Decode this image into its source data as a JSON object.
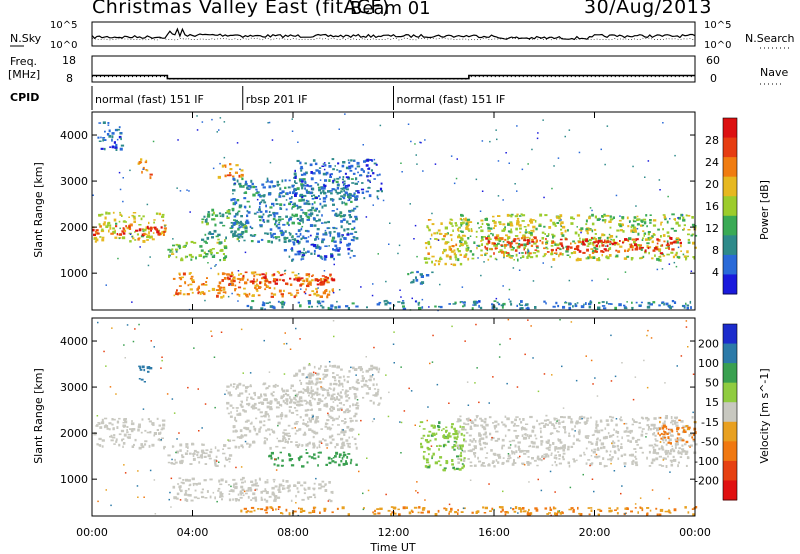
{
  "title": {
    "station": "Christmas Valley East (fitACF)",
    "beam": "Beam 01",
    "date": "30/Aug/2013"
  },
  "colors": {
    "power": [
      "#1a1adc",
      "#2a6ad8",
      "#2e8a8a",
      "#3aaa55",
      "#9ccc2c",
      "#e6b820",
      "#f07c10",
      "#e63c10",
      "#dc1010"
    ],
    "velocity": [
      "#1c2ccc",
      "#2c7aa8",
      "#3aa050",
      "#90cc40",
      "#c8c8c0",
      "#e8a020",
      "#f07810",
      "#e64010",
      "#e01010"
    ]
  },
  "chart_data": [
    {
      "type": "line",
      "name": "noise-panel",
      "left_label": "N.Sky",
      "left_ticks": [
        "10^5",
        "10^0"
      ],
      "right_label": "N.Search",
      "right_ticks": [
        "10^5",
        "10^0"
      ]
    },
    {
      "type": "line",
      "name": "freq-panel",
      "left_label": "Freq.",
      "left_unit": "[MHz]",
      "left_ticks": [
        "18",
        "8"
      ],
      "right_label": "Nave",
      "right_ticks": [
        "60",
        "0"
      ],
      "freq_mhz": [
        [
          0,
          10.5
        ],
        [
          3,
          10.5
        ],
        [
          3,
          9.3
        ],
        [
          15,
          9.3
        ],
        [
          15,
          10.5
        ],
        [
          24,
          10.5
        ]
      ],
      "nave": [
        [
          0,
          13
        ],
        [
          3,
          13
        ],
        [
          3,
          7
        ],
        [
          15,
          7
        ],
        [
          15,
          13
        ],
        [
          24,
          13
        ]
      ]
    },
    {
      "type": "table",
      "name": "cpid-panel",
      "label": "CPID",
      "segments": [
        {
          "start": 0,
          "end": 6,
          "text": "normal (fast) 151 IF"
        },
        {
          "start": 6,
          "end": 12,
          "text": "rbsp 201 IF"
        },
        {
          "start": 12,
          "end": 24,
          "text": "normal (fast) 151 IF"
        }
      ]
    },
    {
      "type": "heatmap",
      "name": "power-panel",
      "ylabel": "Slant Range [km]",
      "yticks": [
        1000,
        2000,
        3000,
        4000
      ],
      "ylim": [
        200,
        4500
      ],
      "colorbar_label": "Power [dB]",
      "colorbar_ticks": [
        4,
        8,
        12,
        16,
        20,
        24,
        28
      ],
      "colorbar_range": [
        0,
        32
      ],
      "regions": [
        {
          "t0": 0,
          "t1": 2.9,
          "r0": 1700,
          "r1": 2350,
          "v": 18
        },
        {
          "t0": 0,
          "t1": 2.9,
          "r0": 1850,
          "r1": 2050,
          "v": 27
        },
        {
          "t0": 0.2,
          "t1": 1.2,
          "r0": 3700,
          "r1": 4300,
          "v": 6
        },
        {
          "t0": 1.8,
          "t1": 2.3,
          "r0": 3100,
          "r1": 3500,
          "v": 22
        },
        {
          "t0": 3.0,
          "t1": 5.3,
          "r0": 1300,
          "r1": 1750,
          "v": 14
        },
        {
          "t0": 4.3,
          "t1": 6.1,
          "r0": 1700,
          "r1": 2400,
          "v": 12
        },
        {
          "t0": 3.2,
          "t1": 9.6,
          "r0": 500,
          "r1": 1050,
          "v": 22
        },
        {
          "t0": 5.2,
          "t1": 9.6,
          "r0": 750,
          "r1": 1000,
          "v": 28
        },
        {
          "t0": 5.5,
          "t1": 10.5,
          "r0": 1700,
          "r1": 3100,
          "v": 8
        },
        {
          "t0": 8.0,
          "t1": 11.5,
          "r0": 2600,
          "r1": 3500,
          "v": 6
        },
        {
          "t0": 7.5,
          "t1": 10.4,
          "r0": 1300,
          "r1": 1900,
          "v": 6
        },
        {
          "t0": 5.0,
          "t1": 6.1,
          "r0": 3100,
          "r1": 3400,
          "v": 22
        },
        {
          "t0": 13.2,
          "t1": 15.0,
          "r0": 1200,
          "r1": 2200,
          "v": 18
        },
        {
          "t0": 14.5,
          "t1": 24.0,
          "r0": 1300,
          "r1": 2300,
          "v": 16
        },
        {
          "t0": 15.5,
          "t1": 23.5,
          "r0": 1450,
          "r1": 1800,
          "v": 27
        },
        {
          "t0": 5.9,
          "t1": 24.0,
          "r0": 250,
          "r1": 420,
          "v": 8
        },
        {
          "t0": 12.5,
          "t1": 13.5,
          "r0": 800,
          "r1": 1050,
          "v": 8
        }
      ]
    },
    {
      "type": "heatmap",
      "name": "velocity-panel",
      "ylabel": "Slant Range [km]",
      "yticks": [
        1000,
        2000,
        3000,
        4000
      ],
      "ylim": [
        200,
        4500
      ],
      "colorbar_label": "Velocity [m s^-1]",
      "colorbar_ticks": [
        200,
        100,
        50,
        15,
        -15,
        -50,
        -100,
        -200
      ],
      "regions": [
        {
          "t0": 0,
          "t1": 2.9,
          "r0": 1700,
          "r1": 2350,
          "v": 0
        },
        {
          "t0": 1.8,
          "t1": 2.3,
          "r0": 3100,
          "r1": 3500,
          "v": 180
        },
        {
          "t0": 3.0,
          "t1": 5.5,
          "r0": 1300,
          "r1": 1800,
          "v": 0
        },
        {
          "t0": 3.2,
          "t1": 9.6,
          "r0": 550,
          "r1": 1050,
          "v": 0
        },
        {
          "t0": 5.3,
          "t1": 10.5,
          "r0": 1700,
          "r1": 3100,
          "v": 0
        },
        {
          "t0": 7.0,
          "t1": 10.5,
          "r0": 1300,
          "r1": 1600,
          "v": 70
        },
        {
          "t0": 8.0,
          "t1": 11.5,
          "r0": 2600,
          "r1": 3500,
          "v": 0
        },
        {
          "t0": 13.0,
          "t1": 14.8,
          "r0": 1200,
          "r1": 2300,
          "v": 40
        },
        {
          "t0": 14.5,
          "t1": 24.0,
          "r0": 1300,
          "r1": 2400,
          "v": 0
        },
        {
          "t0": 22.5,
          "t1": 24.0,
          "r0": 1800,
          "r1": 2300,
          "v": -60
        },
        {
          "t0": 5.9,
          "t1": 24.0,
          "r0": 250,
          "r1": 420,
          "v": -50
        }
      ]
    }
  ],
  "xaxis": {
    "label": "Time UT",
    "ticks": [
      "00:00",
      "04:00",
      "08:00",
      "12:00",
      "16:00",
      "20:00",
      "00:00"
    ]
  }
}
